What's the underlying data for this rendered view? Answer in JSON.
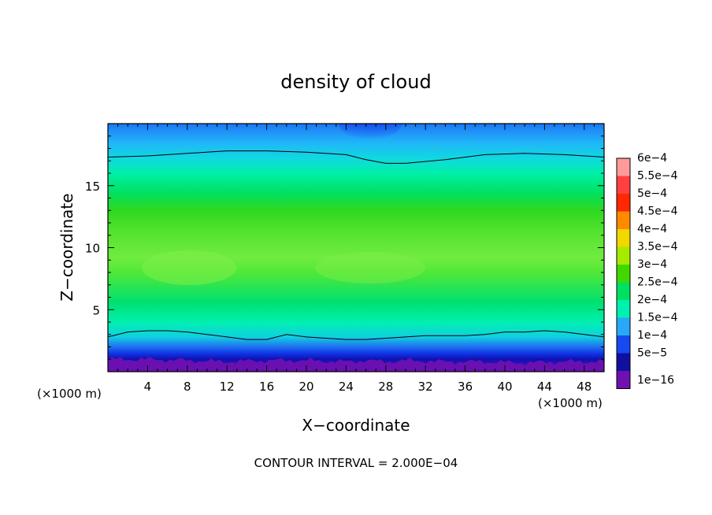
{
  "chart_data": {
    "type": "heatmap",
    "title": "density of cloud",
    "xlabel": "X−coordinate",
    "ylabel": "Z−coordinate",
    "x_unit": "(×1000 m)",
    "x_unit_right": "(×1000 m)",
    "footer": "CONTOUR INTERVAL = 2.000E−04",
    "xlim": [
      0,
      50
    ],
    "ylim": [
      0,
      20
    ],
    "x_ticks": [
      4,
      8,
      12,
      16,
      20,
      24,
      28,
      32,
      36,
      40,
      44,
      48
    ],
    "y_ticks": [
      5,
      10,
      15
    ],
    "x_tick_labels": [
      "4",
      "8",
      "12",
      "16",
      "20",
      "24",
      "28",
      "32",
      "36",
      "40",
      "44",
      "48"
    ],
    "y_tick_labels": [
      "5",
      "10",
      "15"
    ],
    "colorbar": {
      "labels": [
        "6e−4",
        "5.5e−4",
        "5e−4",
        "4.5e−4",
        "4e−4",
        "3.5e−4",
        "3e−4",
        "2.5e−4",
        "2e−4",
        "1.5e−4",
        "1e−4",
        "5e−5",
        "1e−16"
      ],
      "colors": [
        "#ff9a9a",
        "#ff4040",
        "#ff2800",
        "#ff8a00",
        "#f0d800",
        "#a6ea00",
        "#40d800",
        "#00e060",
        "#00f0b0",
        "#28a8f8",
        "#1848f0",
        "#1010a0",
        "#7010b0"
      ]
    },
    "contour_lines_z": [
      {
        "x": [
          0,
          4,
          8,
          12,
          16,
          20,
          24,
          26,
          28,
          30,
          34,
          38,
          42,
          46,
          50
        ],
        "z": [
          17.3,
          17.4,
          17.6,
          17.8,
          17.8,
          17.7,
          17.5,
          17.1,
          16.8,
          16.8,
          17.1,
          17.5,
          17.6,
          17.5,
          17.3
        ]
      },
      {
        "x": [
          0,
          2,
          4,
          6,
          8,
          10,
          12,
          14,
          16,
          18,
          20,
          22,
          24,
          26,
          28,
          30,
          32,
          34,
          36,
          38,
          40,
          42,
          44,
          46,
          48,
          50
        ],
        "z": [
          2.8,
          3.2,
          3.3,
          3.3,
          3.2,
          3.0,
          2.8,
          2.6,
          2.6,
          3.0,
          2.8,
          2.7,
          2.6,
          2.6,
          2.7,
          2.8,
          2.9,
          2.9,
          2.9,
          3.0,
          3.2,
          3.2,
          3.3,
          3.2,
          3.0,
          2.8
        ]
      }
    ],
    "bands_z": {
      "x": [
        0,
        4,
        8,
        12,
        16,
        20,
        24,
        26,
        28,
        30,
        34,
        38,
        42,
        46,
        50
      ],
      "low_cloud_top": [
        1.0,
        1.0,
        0.9,
        0.8,
        0.9,
        0.9,
        0.8,
        0.9,
        0.8,
        0.9,
        0.8,
        0.8,
        0.7,
        0.8,
        0.8
      ],
      "upper_edge": [
        19.6,
        19.6,
        19.6,
        19.6,
        19.6,
        19.6,
        19.3,
        18.5,
        19.0,
        19.6,
        19.6,
        19.6,
        19.6,
        19.6,
        19.6
      ]
    }
  }
}
